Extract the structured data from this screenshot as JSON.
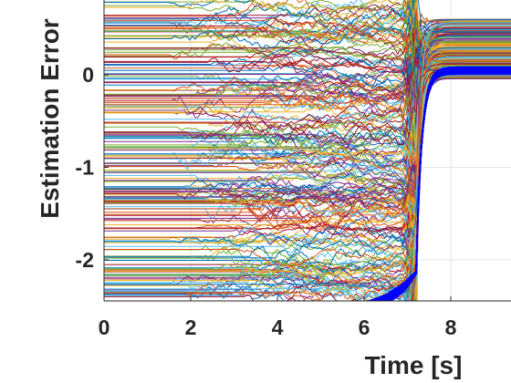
{
  "chart_data": {
    "type": "line",
    "title": "",
    "xlabel": "Time [s]",
    "ylabel": "Estimation Error",
    "xlim": [
      0,
      9.6
    ],
    "ylim": [
      -2.5,
      0.8
    ],
    "x_ticks": [
      0,
      2,
      4,
      6,
      8
    ],
    "y_ticks": [
      0,
      -1,
      -2
    ],
    "x_tick_labels": [
      "0",
      "2",
      "4",
      "6",
      "8"
    ],
    "y_tick_labels": [
      "0",
      "-1",
      "-2"
    ],
    "grid": true,
    "legend": "none",
    "event_time": 7.2,
    "settled_level": 0.05,
    "series_groups": [
      {
        "description_color": "multicolor",
        "count": 220,
        "initial_error_range": [
          -2.45,
          0.8
        ],
        "converge_at": 7.2,
        "final_error_range": [
          -0.05,
          0.6
        ]
      },
      {
        "description_color": "#0000ff",
        "count": 40,
        "initial_error": -2.5,
        "rise_start": 5.2,
        "converge_at": 7.2,
        "final_error": 0.05
      }
    ],
    "palette": [
      "#0072bd",
      "#d95319",
      "#edb120",
      "#7e2f8e",
      "#77ac30",
      "#4dbeee",
      "#a2142f"
    ]
  }
}
